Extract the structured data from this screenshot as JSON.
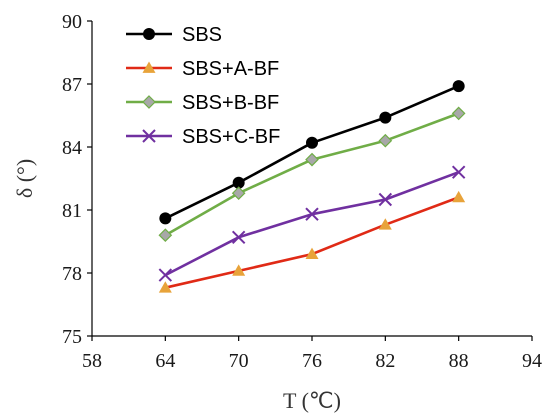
{
  "chart_data": {
    "type": "line",
    "title": "",
    "xlabel": "T (℃)",
    "ylabel": "δ (°)",
    "xlim": [
      58,
      94
    ],
    "ylim": [
      75,
      90
    ],
    "xticks": [
      58,
      64,
      70,
      76,
      82,
      88,
      94
    ],
    "yticks": [
      75,
      78,
      81,
      84,
      87,
      90
    ],
    "grid": false,
    "legend_position": "top-left",
    "x": [
      64,
      70,
      76,
      82,
      88
    ],
    "series": [
      {
        "name": "SBS",
        "values": [
          80.6,
          82.3,
          84.2,
          85.4,
          86.9
        ],
        "color": "#000000",
        "marker": "circle"
      },
      {
        "name": "SBS+A-BF",
        "values": [
          77.3,
          78.1,
          78.9,
          80.3,
          81.6
        ],
        "color": "#e02a16",
        "marker_color": "#e8a33a",
        "marker": "triangle"
      },
      {
        "name": "SBS+B-BF",
        "values": [
          79.8,
          81.8,
          83.4,
          84.3,
          85.6
        ],
        "color": "#70ad47",
        "marker_color": "#a8a8a8",
        "marker": "diamond"
      },
      {
        "name": "SBS+C-BF",
        "values": [
          77.9,
          79.7,
          80.8,
          81.5,
          82.8
        ],
        "color": "#7030a0",
        "marker": "x"
      }
    ]
  }
}
